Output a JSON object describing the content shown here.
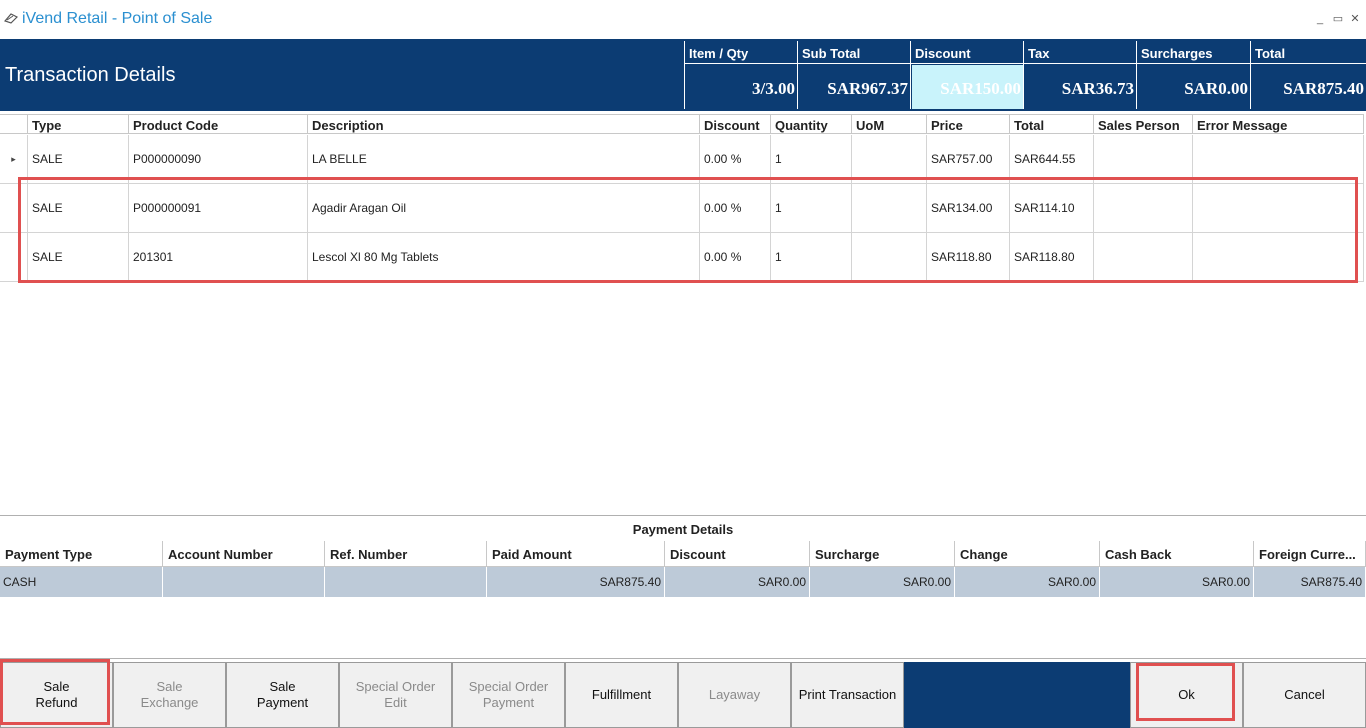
{
  "window": {
    "title": "iVend Retail - Point of Sale",
    "minimize_glyph": "_",
    "restore_glyph": "▭",
    "close_glyph": "✕"
  },
  "header": {
    "title": "Transaction Details",
    "summary": [
      {
        "label": "Item / Qty",
        "value": "3/3.00"
      },
      {
        "label": "Sub Total",
        "value": "SAR967.37"
      },
      {
        "label": "Discount",
        "value": "SAR150.00"
      },
      {
        "label": "Tax",
        "value": "SAR36.73"
      },
      {
        "label": "Surcharges",
        "value": "SAR0.00"
      },
      {
        "label": "Total",
        "value": "SAR875.40"
      }
    ]
  },
  "grid": {
    "columns": [
      "Type",
      "Product Code",
      "Description",
      "Discount",
      "Quantity",
      "UoM",
      "Price",
      "Total",
      "Sales Person",
      "Error Message"
    ],
    "rows": [
      {
        "type": "SALE",
        "code": "P000000090",
        "description": "LA BELLE",
        "discount": "0.00 %",
        "quantity": "1",
        "uom": "",
        "price": "SAR757.00",
        "total": "SAR644.55",
        "sales_person": "",
        "error": ""
      },
      {
        "type": "SALE",
        "code": "P000000091",
        "description": "Agadir Aragan Oil",
        "discount": "0.00 %",
        "quantity": "1",
        "uom": "",
        "price": "SAR134.00",
        "total": "SAR114.10",
        "sales_person": "",
        "error": ""
      },
      {
        "type": "SALE",
        "code": "201301",
        "description": "Lescol Xl 80 Mg Tablets",
        "discount": "0.00 %",
        "quantity": "1",
        "uom": "",
        "price": "SAR118.80",
        "total": "SAR118.80",
        "sales_person": "",
        "error": ""
      }
    ],
    "row_indicator": "▸"
  },
  "payment": {
    "title": "Payment Details",
    "columns": [
      "Payment Type",
      "Account Number",
      "Ref. Number",
      "Paid Amount",
      "Discount",
      "Surcharge",
      "Change",
      "Cash Back",
      "Foreign Curre..."
    ],
    "row": [
      "CASH",
      "",
      "",
      "SAR875.40",
      "SAR0.00",
      "SAR0.00",
      "SAR0.00",
      "SAR0.00",
      "SAR875.40"
    ]
  },
  "buttons": {
    "sale_refund": "Sale\nRefund",
    "sale_exchange": "Sale\nExchange",
    "sale_payment": "Sale\nPayment",
    "special_order_edit": "Special Order\nEdit",
    "special_order_payment": "Special Order\nPayment",
    "fulfillment": "Fulfillment",
    "layaway": "Layaway",
    "print_transaction": "Print Transaction",
    "ok": "Ok",
    "cancel": "Cancel"
  },
  "colors": {
    "header_bg": "#0c3c73",
    "highlight_box": "#e05050",
    "discount_highlight": "#c9f3fb",
    "payment_row_bg": "#bdcad8",
    "title_text": "#2a8fd0"
  }
}
